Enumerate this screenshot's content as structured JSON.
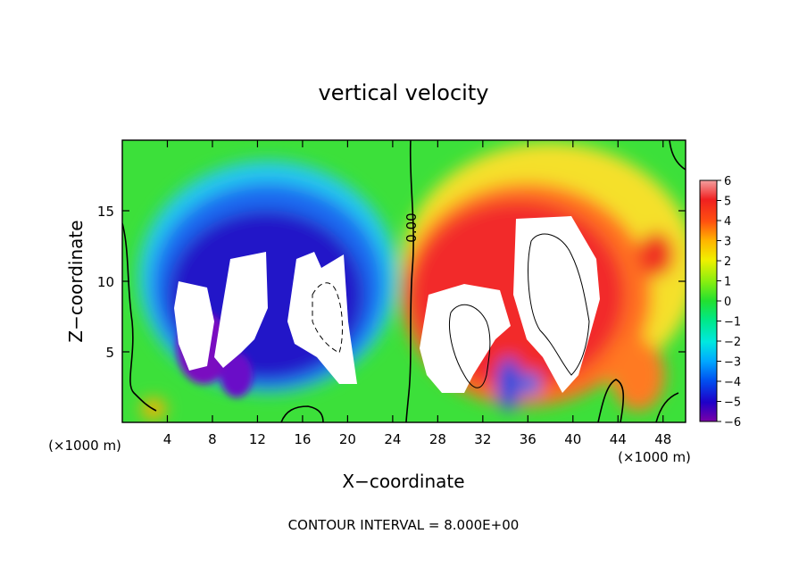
{
  "chart_data": {
    "type": "heatmap",
    "title": "vertical velocity",
    "xlabel": "X−coordinate",
    "ylabel": "Z−coordinate",
    "x_unit_left": "(×1000 m)",
    "x_unit_right": "(×1000 m)",
    "x_ticks": [
      4,
      8,
      12,
      16,
      20,
      24,
      28,
      32,
      36,
      40,
      44,
      48
    ],
    "y_ticks": [
      5,
      10,
      15
    ],
    "xlim": [
      0,
      50
    ],
    "ylim": [
      0,
      20
    ],
    "contour_label": "0.00",
    "footer": "CONTOUR INTERVAL = 8.000E+00",
    "colorbar": {
      "ticks": [
        "6",
        "5",
        "4",
        "3",
        "2",
        "1",
        "0",
        "−1",
        "−2",
        "−3",
        "−4",
        "−5",
        "−6"
      ],
      "range": [
        -6,
        6
      ]
    }
  }
}
